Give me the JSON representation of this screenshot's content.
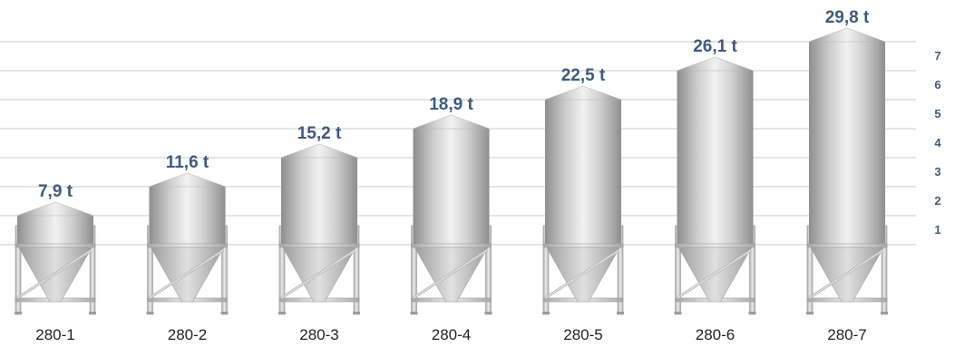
{
  "figure": {
    "silos": [
      {
        "model": "280-1",
        "capacity": "7,9 t",
        "rings": 1
      },
      {
        "model": "280-2",
        "capacity": "11,6 t",
        "rings": 2
      },
      {
        "model": "280-3",
        "capacity": "15,2 t",
        "rings": 3
      },
      {
        "model": "280-4",
        "capacity": "18,9 t",
        "rings": 4
      },
      {
        "model": "280-5",
        "capacity": "22,5 t",
        "rings": 5
      },
      {
        "model": "280-6",
        "capacity": "26,1 t",
        "rings": 6
      },
      {
        "model": "280-7",
        "capacity": "29,8 t",
        "rings": 7
      }
    ],
    "ring_labels": [
      "1",
      "2",
      "3",
      "4",
      "5",
      "6",
      "7"
    ]
  },
  "colors": {
    "capacity_label": "#3d5a80",
    "model_label": "#222222",
    "guide_line": "#c8c8c8",
    "metal_dark": "#8e8e8e",
    "metal_light": "#f2f2f2"
  }
}
